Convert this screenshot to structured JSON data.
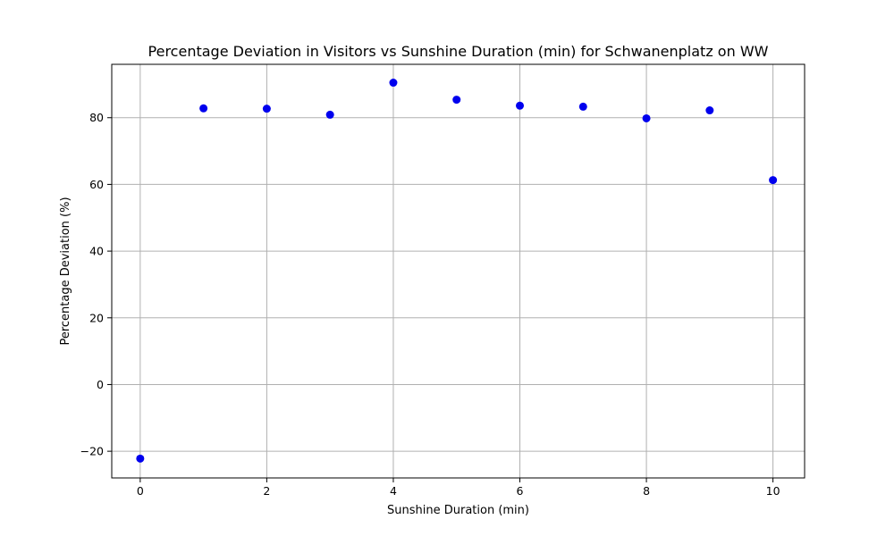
{
  "chart_data": {
    "type": "scatter",
    "title": "Percentage Deviation in Visitors vs Sunshine Duration (min) for Schwanenplatz on WW",
    "xlabel": "Sunshine Duration (min)",
    "ylabel": "Percentage Deviation (%)",
    "xlim": [
      -0.45,
      10.5
    ],
    "ylim": [
      -28,
      96
    ],
    "xticks": [
      0,
      2,
      4,
      6,
      8,
      10
    ],
    "yticks": [
      -20,
      0,
      20,
      40,
      60,
      80
    ],
    "xtick_labels": [
      "0",
      "2",
      "4",
      "6",
      "8",
      "10"
    ],
    "ytick_labels": [
      "−20",
      "0",
      "20",
      "40",
      "60",
      "80"
    ],
    "grid": true,
    "marker_color": "#0000ee",
    "points": [
      {
        "x": 0,
        "y": -22.2
      },
      {
        "x": 1,
        "y": 82.8
      },
      {
        "x": 2,
        "y": 82.7
      },
      {
        "x": 3,
        "y": 80.9
      },
      {
        "x": 4,
        "y": 90.5
      },
      {
        "x": 5,
        "y": 85.4
      },
      {
        "x": 6,
        "y": 83.6
      },
      {
        "x": 7,
        "y": 83.3
      },
      {
        "x": 8,
        "y": 79.8
      },
      {
        "x": 9,
        "y": 82.2
      },
      {
        "x": 10,
        "y": 61.3
      }
    ]
  }
}
